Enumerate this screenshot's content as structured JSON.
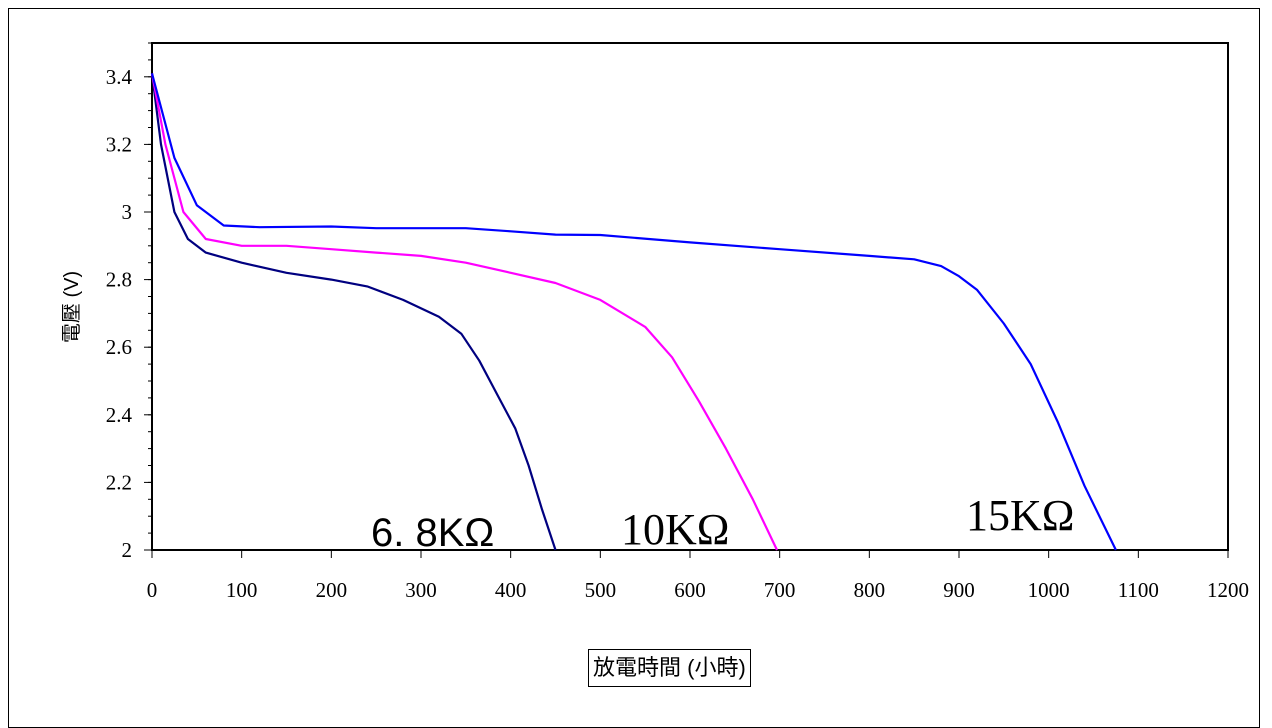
{
  "chart_data": {
    "type": "line",
    "title": "",
    "xlabel": "放電時間 (小時)",
    "ylabel": "電壓 (V)",
    "xlim": [
      0,
      1200
    ],
    "ylim": [
      2,
      3.5
    ],
    "x_ticks": [
      "0",
      "100",
      "200",
      "300",
      "400",
      "500",
      "600",
      "700",
      "800",
      "900",
      "1000",
      "1100",
      "1200"
    ],
    "y_ticks": [
      "2",
      "2.2",
      "2.4",
      "2.6",
      "2.8",
      "3",
      "3.2",
      "3.4"
    ],
    "grid": false,
    "series": [
      {
        "name": "6.8KΩ",
        "color": "#000080",
        "x": [
          0,
          10,
          25,
          40,
          60,
          100,
          150,
          200,
          240,
          280,
          320,
          345,
          365,
          385,
          405,
          420,
          435,
          450
        ],
        "y": [
          3.41,
          3.2,
          3.0,
          2.92,
          2.88,
          2.85,
          2.82,
          2.8,
          2.78,
          2.74,
          2.69,
          2.64,
          2.56,
          2.46,
          2.36,
          2.25,
          2.12,
          2.0
        ]
      },
      {
        "name": "10KΩ",
        "color": "#ff00ff",
        "x": [
          0,
          15,
          35,
          60,
          100,
          150,
          200,
          250,
          300,
          350,
          400,
          450,
          500,
          550,
          580,
          610,
          640,
          670,
          697
        ],
        "y": [
          3.41,
          3.2,
          3.0,
          2.92,
          2.9,
          2.9,
          2.89,
          2.88,
          2.87,
          2.85,
          2.82,
          2.79,
          2.74,
          2.66,
          2.57,
          2.44,
          2.3,
          2.15,
          2.0
        ]
      },
      {
        "name": "15KΩ",
        "color": "#0000ff",
        "x": [
          0,
          25,
          50,
          80,
          120,
          200,
          250,
          350,
          400,
          450,
          500,
          600,
          700,
          800,
          850,
          880,
          900,
          920,
          950,
          980,
          1010,
          1040,
          1075
        ],
        "y": [
          3.41,
          3.16,
          3.02,
          2.96,
          2.955,
          2.957,
          2.952,
          2.952,
          2.943,
          2.933,
          2.932,
          2.91,
          2.89,
          2.87,
          2.86,
          2.84,
          2.81,
          2.77,
          2.67,
          2.55,
          2.38,
          2.19,
          2.0
        ]
      }
    ],
    "annotations": [
      "6. 8KΩ",
      "10KΩ",
      "15KΩ"
    ]
  }
}
